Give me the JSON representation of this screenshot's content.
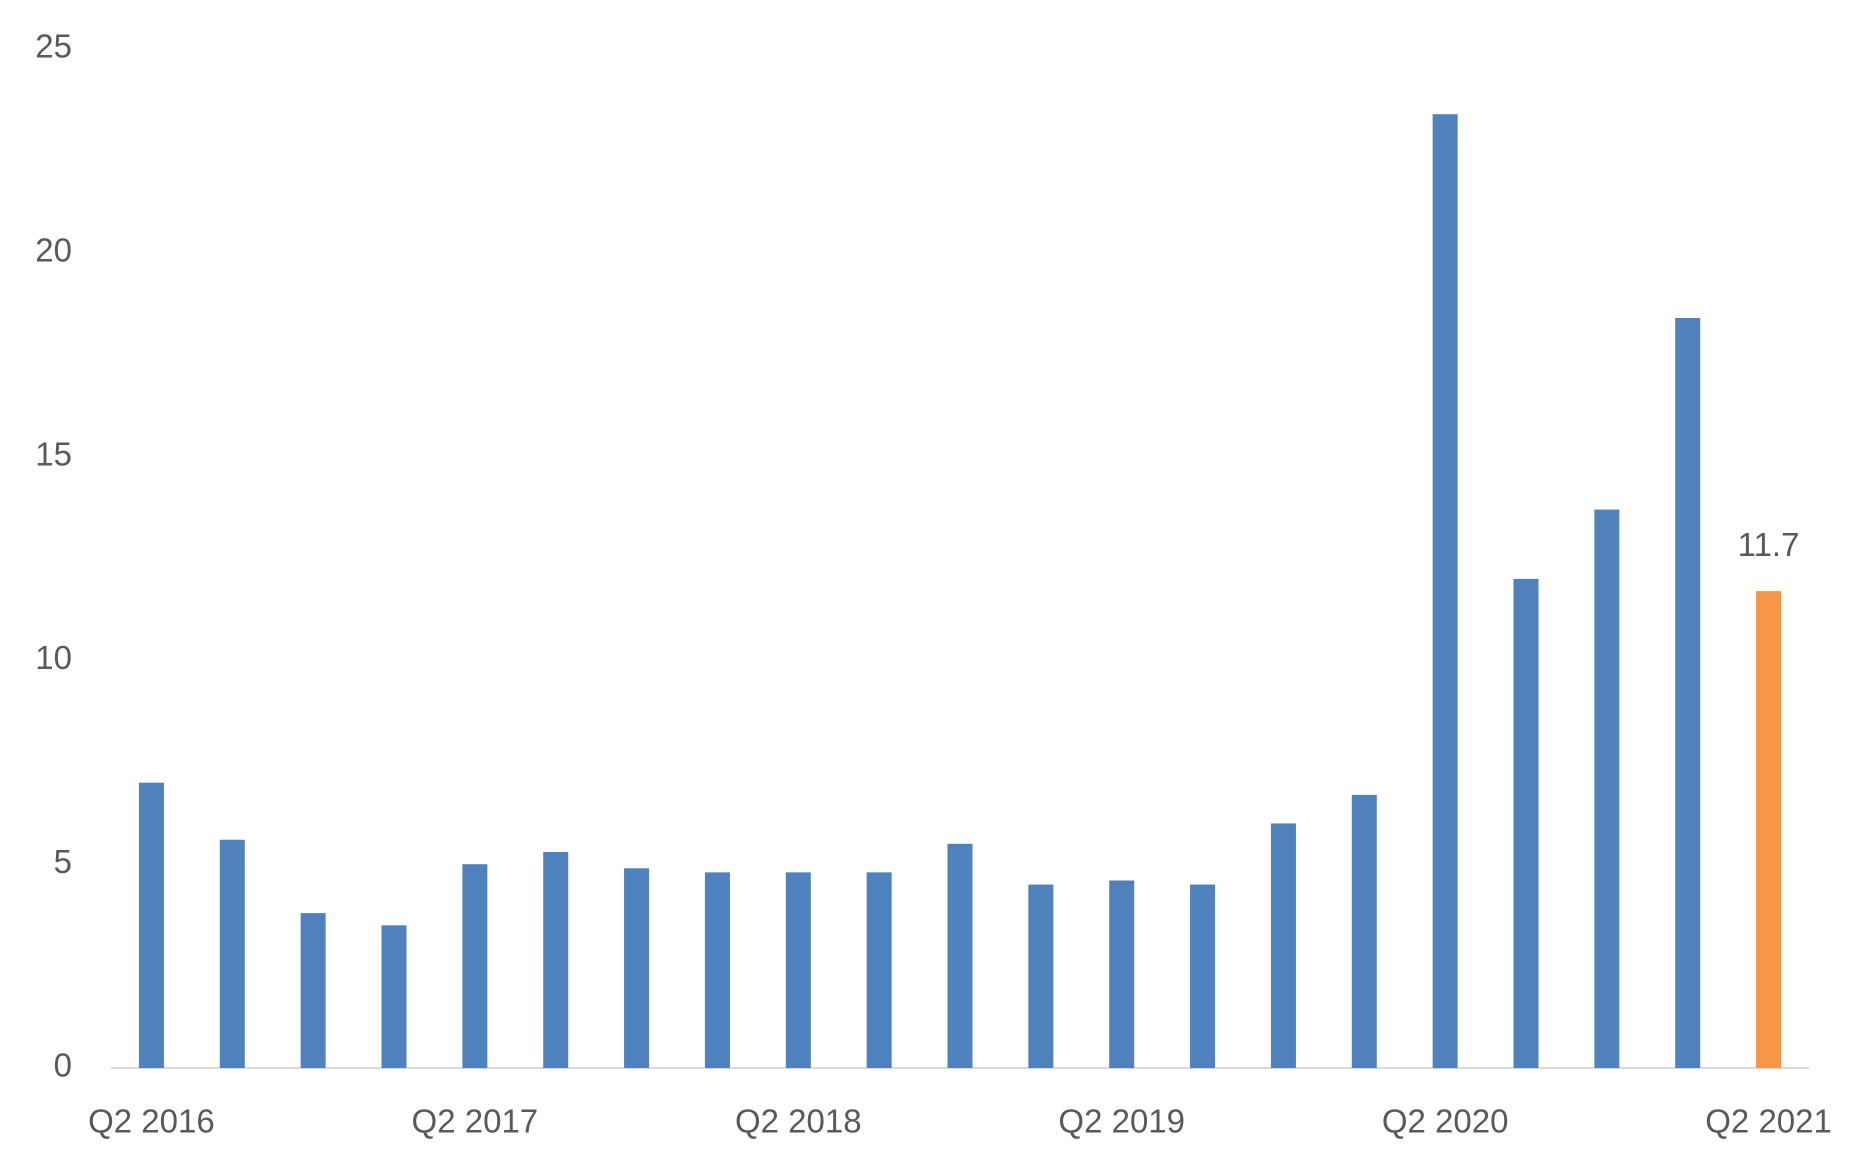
{
  "chart_data": {
    "type": "bar",
    "categories": [
      "Q2 2016",
      null,
      null,
      null,
      "Q2 2017",
      null,
      null,
      null,
      "Q2 2018",
      null,
      null,
      null,
      "Q2 2019",
      null,
      null,
      null,
      "Q2 2020",
      null,
      null,
      null,
      "Q2 2021"
    ],
    "values": [
      7.0,
      5.6,
      3.8,
      3.5,
      5.0,
      5.3,
      4.9,
      4.8,
      4.8,
      4.8,
      5.5,
      4.5,
      4.6,
      4.5,
      6.0,
      6.7,
      23.4,
      12.0,
      13.7,
      18.4,
      11.7
    ],
    "value_labels": [
      null,
      null,
      null,
      null,
      null,
      null,
      null,
      null,
      null,
      null,
      null,
      null,
      null,
      null,
      null,
      null,
      null,
      null,
      null,
      null,
      "11.7"
    ],
    "colors": [
      "#4f81bd",
      "#4f81bd",
      "#4f81bd",
      "#4f81bd",
      "#4f81bd",
      "#4f81bd",
      "#4f81bd",
      "#4f81bd",
      "#4f81bd",
      "#4f81bd",
      "#4f81bd",
      "#4f81bd",
      "#4f81bd",
      "#4f81bd",
      "#4f81bd",
      "#4f81bd",
      "#4f81bd",
      "#4f81bd",
      "#4f81bd",
      "#4f81bd",
      "#f79646"
    ],
    "ylim": [
      0,
      25
    ],
    "yticks": [
      0,
      5,
      10,
      15,
      20,
      25
    ],
    "grid": false
  }
}
